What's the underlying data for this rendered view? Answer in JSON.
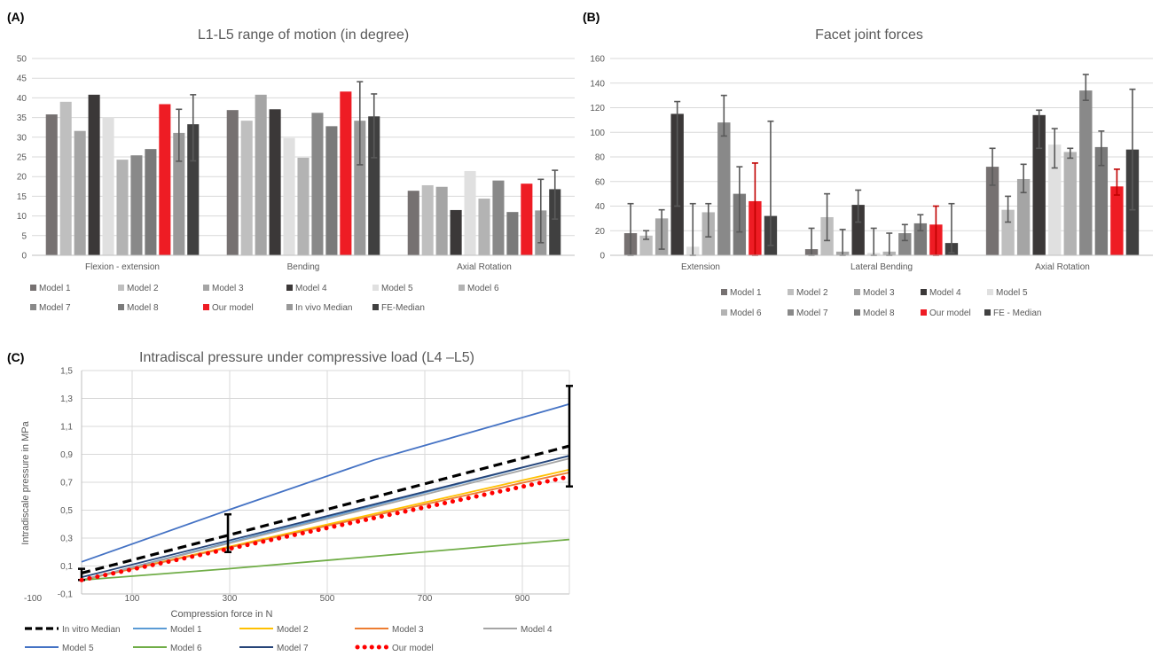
{
  "chart_data": [
    {
      "panel": "(A)",
      "type": "bar",
      "title": "L1-L5 range of motion (in degree)",
      "categories": [
        "Flexion - extension",
        "Bending",
        "Axial Rotation"
      ],
      "ylim": [
        0,
        50
      ],
      "yticks": [
        0,
        5,
        10,
        15,
        20,
        25,
        30,
        35,
        40,
        45,
        50
      ],
      "grid": true,
      "legend_position": "bottom",
      "series": [
        {
          "name": "Model 1",
          "color": "#767171",
          "values": [
            35.8,
            36.9,
            16.4
          ]
        },
        {
          "name": "Model 2",
          "color": "#bfbfbf",
          "values": [
            39.0,
            34.2,
            17.8
          ]
        },
        {
          "name": "Model 3",
          "color": "#a5a5a5",
          "values": [
            31.6,
            40.8,
            17.4
          ]
        },
        {
          "name": "Model 4",
          "color": "#3b3838",
          "values": [
            40.8,
            37.1,
            11.5
          ]
        },
        {
          "name": "Model 5",
          "color": "#e0e0e0",
          "values": [
            35.0,
            29.8,
            21.4
          ]
        },
        {
          "name": "Model 6",
          "color": "#b3b3b3",
          "values": [
            24.3,
            24.8,
            14.4
          ]
        },
        {
          "name": "Model 7",
          "color": "#898989",
          "values": [
            25.4,
            36.2,
            19.0
          ]
        },
        {
          "name": "Model 8",
          "color": "#7a7a7a",
          "values": [
            27.0,
            32.8,
            11.0
          ]
        },
        {
          "name": "Our model",
          "color": "#ee1c24",
          "values": [
            38.4,
            41.6,
            18.2
          ]
        },
        {
          "name": "In vivo Median",
          "color": "#999999",
          "values": [
            31.1,
            34.2,
            11.4
          ],
          "err_low": [
            23.9,
            23.0,
            3.2
          ],
          "err_high": [
            37.1,
            44.1,
            19.3
          ]
        },
        {
          "name": "FE-Median",
          "color": "#404040",
          "values": [
            33.3,
            35.3,
            16.8
          ],
          "err_low": [
            24.0,
            24.8,
            9.2
          ],
          "err_high": [
            40.8,
            41.0,
            21.6
          ]
        }
      ]
    },
    {
      "panel": "(B)",
      "type": "bar",
      "title": "Facet joint forces",
      "categories": [
        "Extension",
        "Lateral Bending",
        "Axial Rotation"
      ],
      "ylim": [
        0,
        160
      ],
      "yticks": [
        0,
        20,
        40,
        60,
        80,
        100,
        120,
        140,
        160
      ],
      "grid": true,
      "legend_position": "bottom",
      "series": [
        {
          "name": "Model 1",
          "color": "#767171",
          "values": [
            18.0,
            5.0,
            72.0
          ],
          "err_low": [
            0,
            0,
            57.0
          ],
          "err_high": [
            42.0,
            22.0,
            87.0
          ]
        },
        {
          "name": "Model 2",
          "color": "#bfbfbf",
          "values": [
            16.0,
            31.0,
            37.0
          ],
          "err_low": [
            13.0,
            12.0,
            27.0
          ],
          "err_high": [
            20.0,
            50.0,
            48.0
          ]
        },
        {
          "name": "Model 3",
          "color": "#a5a5a5",
          "values": [
            30.0,
            3.0,
            62.0
          ],
          "err_low": [
            5.0,
            0,
            51.0
          ],
          "err_high": [
            37.0,
            21.0,
            74.0
          ]
        },
        {
          "name": "Model 4",
          "color": "#3b3838",
          "values": [
            115.0,
            41.0,
            114.0
          ],
          "err_low": [
            40.0,
            27.0,
            87.0
          ],
          "err_high": [
            125.0,
            53.0,
            118.0
          ]
        },
        {
          "name": "Model 5",
          "color": "#e0e0e0",
          "values": [
            7.0,
            2.0,
            90.0
          ],
          "err_low": [
            0,
            0,
            71.0
          ],
          "err_high": [
            42.0,
            22.0,
            103.0
          ]
        },
        {
          "name": "Model 6",
          "color": "#b3b3b3",
          "values": [
            35.0,
            3.0,
            84.0
          ],
          "err_low": [
            15.0,
            0,
            79.0
          ],
          "err_high": [
            42.0,
            18.0,
            87.0
          ]
        },
        {
          "name": "Model 7",
          "color": "#898989",
          "values": [
            108.0,
            18.0,
            134.0
          ],
          "err_low": [
            97.0,
            12.0,
            126.0
          ],
          "err_high": [
            130.0,
            25.0,
            147.0
          ]
        },
        {
          "name": "Model 8",
          "color": "#7a7a7a",
          "values": [
            50.0,
            26.0,
            88.0
          ],
          "err_low": [
            19.0,
            20.0,
            73.0
          ],
          "err_high": [
            72.0,
            33.0,
            101.0
          ]
        },
        {
          "name": "Our model",
          "color": "#ee1c24",
          "values": [
            44.0,
            25.0,
            56.0
          ],
          "err_low": [
            0,
            0,
            49.0
          ],
          "err_high": [
            75.0,
            40.0,
            70.0
          ]
        },
        {
          "name": "FE - Median",
          "color": "#404040",
          "values": [
            32.0,
            10.0,
            86.0
          ],
          "err_low": [
            8.0,
            2.0,
            37.0
          ],
          "err_high": [
            109.0,
            42.0,
            135.0
          ]
        }
      ]
    },
    {
      "panel": "(C)",
      "type": "line",
      "title": "Intradiscal pressure under compressive load (L4 –L5)",
      "xlabel": "Compression force in N",
      "ylabel": "Intradiscale pressure in MPa",
      "xlim": [
        -100,
        1000
      ],
      "ylim": [
        -0.1,
        1.5
      ],
      "xtick_labels": [
        "-100",
        "100",
        "300",
        "500",
        "700",
        "900"
      ],
      "xtick_values": [
        -100,
        100,
        300,
        500,
        700,
        900
      ],
      "ytick_labels": [
        "-0,1",
        "0,1",
        "0,3",
        "0,5",
        "0,7",
        "0,9",
        "1,1",
        "1,3",
        "1,5"
      ],
      "ytick_values": [
        -0.1,
        0.1,
        0.3,
        0.5,
        0.7,
        0.9,
        1.1,
        1.3,
        1.5
      ],
      "grid": true,
      "legend_position": "bottom",
      "series": [
        {
          "name": "In vitro Median",
          "color": "#000000",
          "style": "dash",
          "x": [
            0,
            300,
            1000
          ],
          "y": [
            0.05,
            0.32,
            0.96
          ],
          "err_low": [
            0.0,
            0.2,
            0.67
          ],
          "err_high": [
            0.08,
            0.47,
            1.39
          ]
        },
        {
          "name": "Model 1",
          "color": "#5b9bd5",
          "style": "solid",
          "x": [
            0,
            1000
          ],
          "y": [
            0.0,
            0.89
          ]
        },
        {
          "name": "Model 2",
          "color": "#ffc000",
          "style": "solid",
          "x": [
            0,
            1000
          ],
          "y": [
            0.0,
            0.79
          ]
        },
        {
          "name": "Model 3",
          "color": "#ed7d31",
          "style": "solid",
          "x": [
            0,
            1000
          ],
          "y": [
            0.0,
            0.77
          ]
        },
        {
          "name": "Model 4",
          "color": "#a5a5a5",
          "style": "solid",
          "x": [
            0,
            1000
          ],
          "y": [
            0.0,
            0.87
          ]
        },
        {
          "name": "Model 5",
          "color": "#4472c4",
          "style": "solid",
          "x": [
            0,
            300,
            600,
            1000
          ],
          "y": [
            0.13,
            0.5,
            0.86,
            1.26
          ]
        },
        {
          "name": "Model 6",
          "color": "#70ad47",
          "style": "solid",
          "x": [
            0,
            300,
            600,
            1000
          ],
          "y": [
            0.0,
            0.08,
            0.17,
            0.29
          ]
        },
        {
          "name": "Model 7",
          "color": "#264478",
          "style": "solid",
          "x": [
            0,
            1000
          ],
          "y": [
            0.02,
            0.89
          ]
        },
        {
          "name": "Our model",
          "color": "#ff0000",
          "style": "dots",
          "x": [
            0,
            1000
          ],
          "y": [
            0.0,
            0.74
          ]
        }
      ]
    }
  ]
}
